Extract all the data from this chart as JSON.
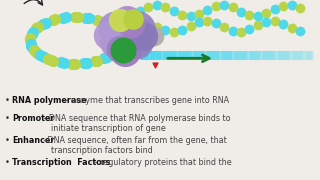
{
  "background_color": "#f0ede8",
  "bullet_points": [
    {
      "bold": "RNA polymerase",
      "separator": " – ",
      "rest": "enzyme that transcribes gene into RNA"
    },
    {
      "bold": "Promoter",
      "separator": " - ",
      "rest": "DNA sequence that RNA polymerase binds to\n    initiate transcription of gene"
    },
    {
      "bold": "Enhancer",
      "separator": " –",
      "rest": "DNA sequence, often far from the gene, that\n    transcription factors bind"
    },
    {
      "bold": "Transcription  Factors",
      "separator": " – ",
      "rest": "regulatory proteins that bind the"
    }
  ],
  "text_color": "#444444",
  "bullet_color": "#333333",
  "bold_color": "#111111",
  "font_size": 5.8
}
